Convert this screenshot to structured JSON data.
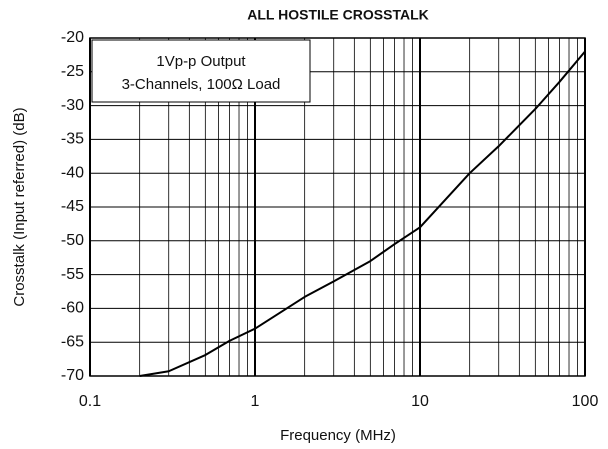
{
  "chart_data": {
    "type": "line",
    "title": "ALL HOSTILE CROSSTALK",
    "x_label": "Frequency (MHz)",
    "y_label": "Crosstalk (Input referred) (dB)",
    "annotations": [
      "1Vp-p Output",
      "3-Channels, 100Ω Load"
    ],
    "x": [
      0.2,
      0.3,
      0.5,
      0.7,
      1,
      2,
      3,
      5,
      7,
      10,
      20,
      30,
      50,
      70,
      100
    ],
    "series": [
      {
        "name": "Crosstalk",
        "color": "#000000",
        "values": [
          -70,
          -69.3,
          -66.9,
          -64.8,
          -63,
          -58.3,
          -56,
          -53,
          -50.5,
          -48,
          -40,
          -36,
          -30.5,
          -26.5,
          -22
        ]
      }
    ],
    "xlim": [
      0.1,
      100
    ],
    "xticks": [
      0.1,
      1,
      10,
      100
    ],
    "xscale": "log",
    "ylim": [
      -70,
      -20
    ],
    "yticks": [
      -70,
      -65,
      -60,
      -55,
      -50,
      -45,
      -40,
      -35,
      -30,
      -25,
      -20
    ],
    "grid": true
  }
}
